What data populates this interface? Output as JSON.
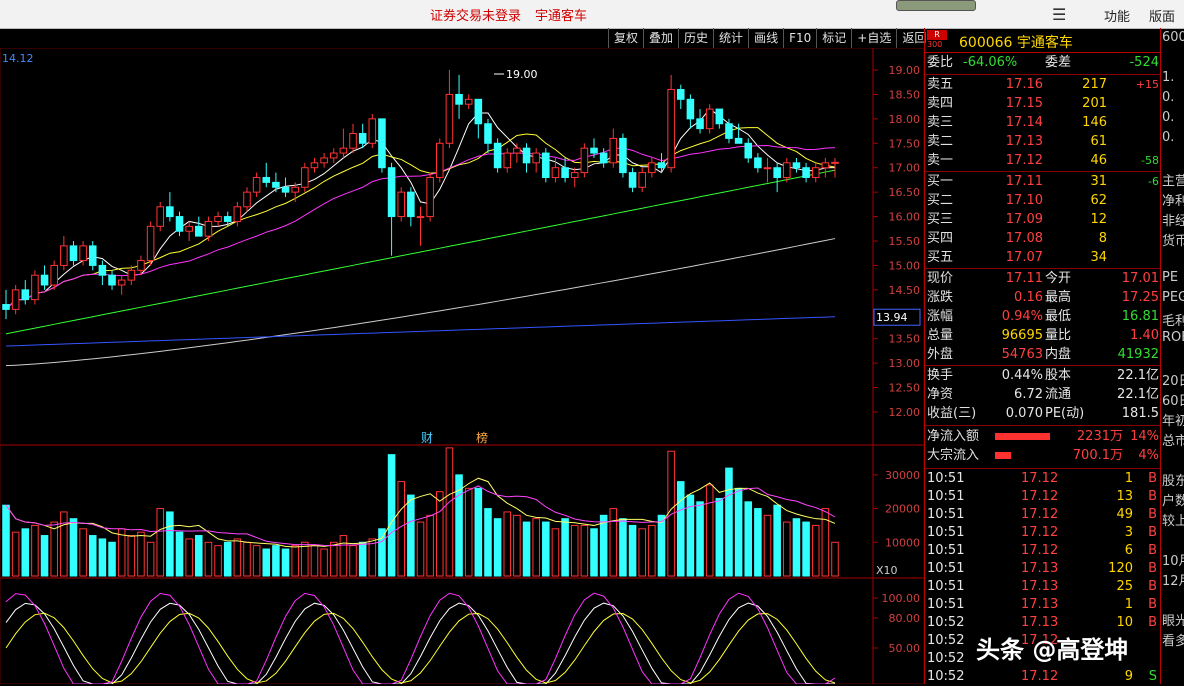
{
  "topbar": {
    "msg1": "证券交易未登录",
    "msg2": "宇通客车",
    "func": "功能",
    "layout": "版面"
  },
  "toolbar": [
    "复权",
    "叠加",
    "历史",
    "统计",
    "画线",
    "F10",
    "标记",
    "+自选",
    "返回"
  ],
  "chart": {
    "corner_label": "14.12",
    "high_label": "19.00",
    "price_cursor": "13.94",
    "price_ticks": [
      "19.00",
      "18.50",
      "18.00",
      "17.50",
      "17.00",
      "16.50",
      "16.00",
      "15.50",
      "15.00",
      "14.50",
      "14.00",
      "13.50",
      "13.00",
      "12.50",
      "12.00"
    ],
    "marker_cai": "财",
    "marker_bang": "榜",
    "volume_ticks": [
      "30000",
      "20000",
      "10000"
    ],
    "volume_unit": "X10",
    "osc_ticks": [
      "100.00",
      "80.00",
      "50.00"
    ],
    "colors": {
      "up": "#ff3333",
      "down": "#33ffff",
      "ma5": "#ffffff",
      "ma10": "#ffff33",
      "ma20": "#ff33ff",
      "ma60": "#33ff33",
      "ma120": "#cccccc",
      "ma250": "#3355ff"
    }
  },
  "quote": {
    "badge_top": "R",
    "badge_bottom": "300",
    "code_name": "600066 宇通客车",
    "weibi_label": "委比",
    "weibi": "-64.06%",
    "weicha_label": "委差",
    "weicha": "-524",
    "sell": [
      {
        "label": "卖五",
        "price": "17.16",
        "vol": "217",
        "chg": "+15"
      },
      {
        "label": "卖四",
        "price": "17.15",
        "vol": "201",
        "chg": ""
      },
      {
        "label": "卖三",
        "price": "17.14",
        "vol": "146",
        "chg": ""
      },
      {
        "label": "卖二",
        "price": "17.13",
        "vol": "61",
        "chg": ""
      },
      {
        "label": "卖一",
        "price": "17.12",
        "vol": "46",
        "chg": "-58"
      }
    ],
    "buy": [
      {
        "label": "买一",
        "price": "17.11",
        "vol": "31",
        "chg": "-6"
      },
      {
        "label": "买二",
        "price": "17.10",
        "vol": "62",
        "chg": ""
      },
      {
        "label": "买三",
        "price": "17.09",
        "vol": "12",
        "chg": ""
      },
      {
        "label": "买四",
        "price": "17.08",
        "vol": "8",
        "chg": ""
      },
      {
        "label": "买五",
        "price": "17.07",
        "vol": "34",
        "chg": ""
      }
    ],
    "stats": [
      {
        "l1": "现价",
        "v1": "17.11",
        "l2": "今开",
        "v2": "17.01"
      },
      {
        "l1": "涨跌",
        "v1": "0.16",
        "l2": "最高",
        "v2": "17.25"
      },
      {
        "l1": "涨幅",
        "v1": "0.94%",
        "l2": "最低",
        "v2": "16.81"
      },
      {
        "l1": "总量",
        "v1": "96695",
        "l2": "量比",
        "v2": "1.40"
      },
      {
        "l1": "外盘",
        "v1": "54763",
        "l2": "内盘",
        "v2": "41932"
      }
    ],
    "stats2": [
      {
        "l1": "换手",
        "v1": "0.44%",
        "l2": "股本",
        "v2": "22.1亿"
      },
      {
        "l1": "净资",
        "v1": "6.72",
        "l2": "流通",
        "v2": "22.1亿"
      },
      {
        "l1": "收益(三)",
        "v1": "0.070",
        "l2": "PE(动)",
        "v2": "181.5"
      }
    ],
    "netflow_label": "净流入额",
    "netflow_value": "2231万",
    "netflow_pct": "14%",
    "netflow_bar_fraction": 0.55,
    "block_label": "大宗流入",
    "block_value": "700.1万",
    "block_pct": "4%",
    "block_bar_fraction": 0.16,
    "ticks": [
      {
        "time": "10:51",
        "price": "17.12",
        "vol": "1",
        "side": "B"
      },
      {
        "time": "10:51",
        "price": "17.12",
        "vol": "13",
        "side": "B"
      },
      {
        "time": "10:51",
        "price": "17.12",
        "vol": "49",
        "side": "B"
      },
      {
        "time": "10:51",
        "price": "17.12",
        "vol": "3",
        "side": "B"
      },
      {
        "time": "10:51",
        "price": "17.12",
        "vol": "6",
        "side": "B"
      },
      {
        "time": "10:51",
        "price": "17.13",
        "vol": "120",
        "side": "B"
      },
      {
        "time": "10:51",
        "price": "17.13",
        "vol": "25",
        "side": "B"
      },
      {
        "time": "10:51",
        "price": "17.13",
        "vol": "1",
        "side": "B"
      },
      {
        "time": "10:52",
        "price": "17.13",
        "vol": "10",
        "side": "B"
      },
      {
        "time": "10:52",
        "price": "17.12",
        "vol": "",
        "side": ""
      },
      {
        "time": "10:52",
        "price": "",
        "vol": "",
        "side": ""
      },
      {
        "time": "10:52",
        "price": "17.12",
        "vol": "9",
        "side": "S"
      }
    ]
  },
  "far_column": [
    "600",
    "",
    "1.",
    "0.",
    "0.",
    "0.",
    "",
    "主营",
    "净利",
    "非经",
    "货币",
    "",
    "PE",
    "PEG",
    "毛利",
    "ROE",
    "",
    "20日",
    "60日",
    "年初",
    "总市",
    "",
    "股东",
    "户数",
    "较上",
    "",
    "10月",
    "12月",
    "",
    "眼光",
    "看多"
  ],
  "watermark": "头条 @高登坤"
}
